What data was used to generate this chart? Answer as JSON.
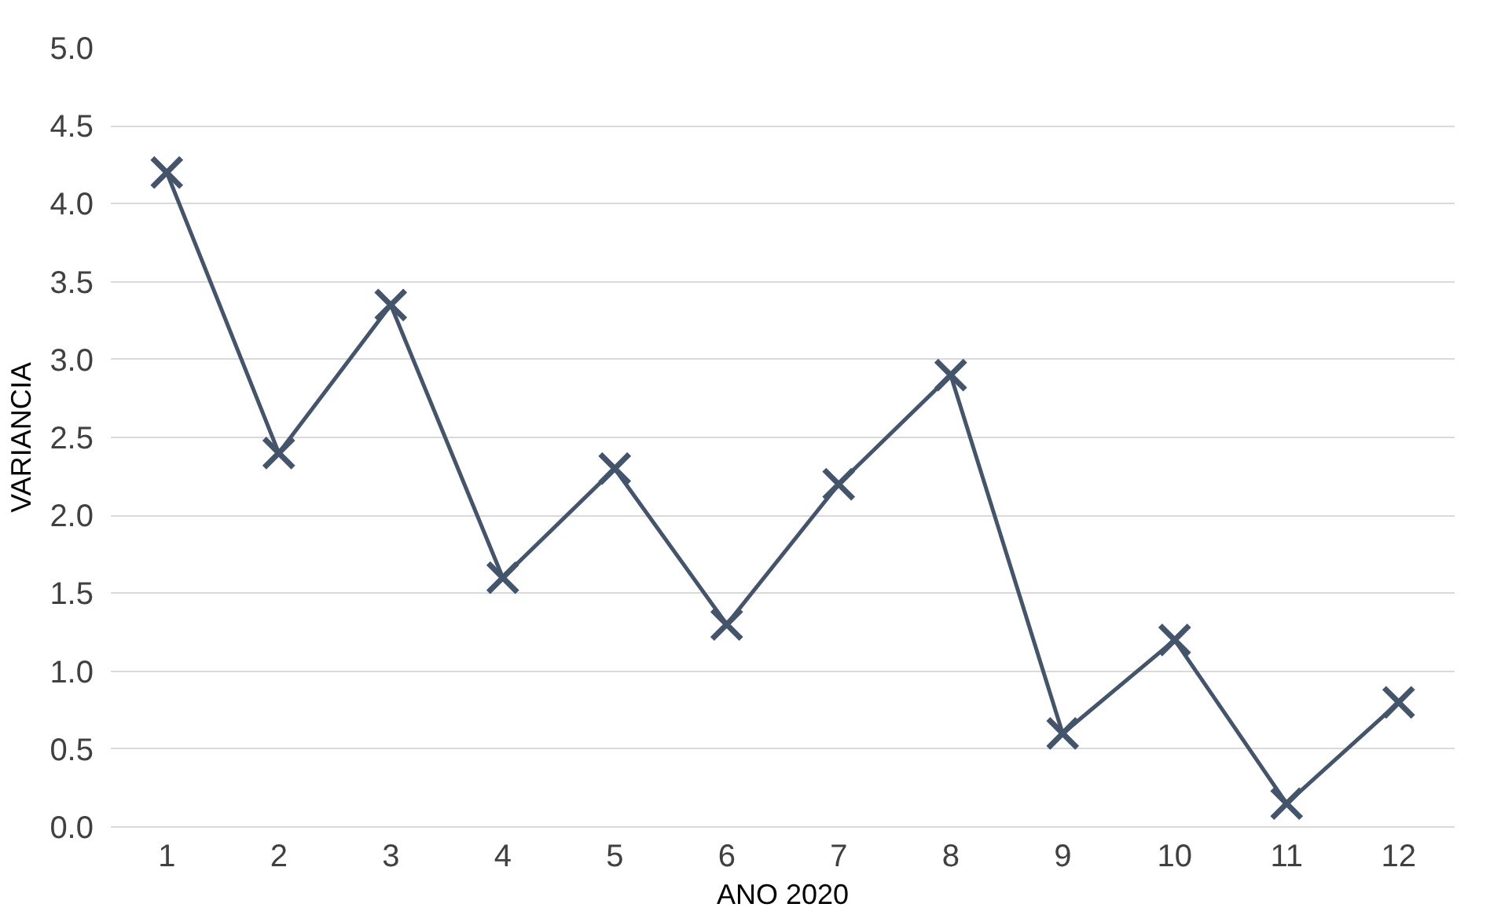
{
  "chart_data": {
    "type": "line",
    "xlabel": "ANO 2020",
    "ylabel": "VARIANCIA",
    "x": [
      1,
      2,
      3,
      4,
      5,
      6,
      7,
      8,
      9,
      10,
      11,
      12
    ],
    "xlim": [
      0.5,
      12.5
    ],
    "xticks": [
      1,
      2,
      3,
      4,
      5,
      6,
      7,
      8,
      9,
      10,
      11,
      12
    ],
    "series": [
      {
        "color": "#44546a",
        "values": [
          4.2,
          2.4,
          3.35,
          1.6,
          2.3,
          1.3,
          2.2,
          2.9,
          0.6,
          1.2,
          0.15,
          0.8
        ]
      }
    ],
    "ylim": [
      0,
      5
    ],
    "yticks": [
      {
        "value": 0,
        "label": "0.0"
      },
      {
        "value": 0.5,
        "label": "0.5"
      },
      {
        "value": 1,
        "label": "1.0"
      },
      {
        "value": 1.5,
        "label": "1.5"
      },
      {
        "value": 2,
        "label": "2.0"
      },
      {
        "value": 2.5,
        "label": "2.5"
      },
      {
        "value": 3,
        "label": "3.0"
      },
      {
        "value": 3.5,
        "label": "3.5"
      },
      {
        "value": 4,
        "label": "4.0"
      },
      {
        "value": 4.5,
        "label": "4.5"
      },
      {
        "value": 5,
        "label": "5.0"
      }
    ],
    "grid": "y",
    "marker": "cross",
    "line_style": "solid"
  }
}
